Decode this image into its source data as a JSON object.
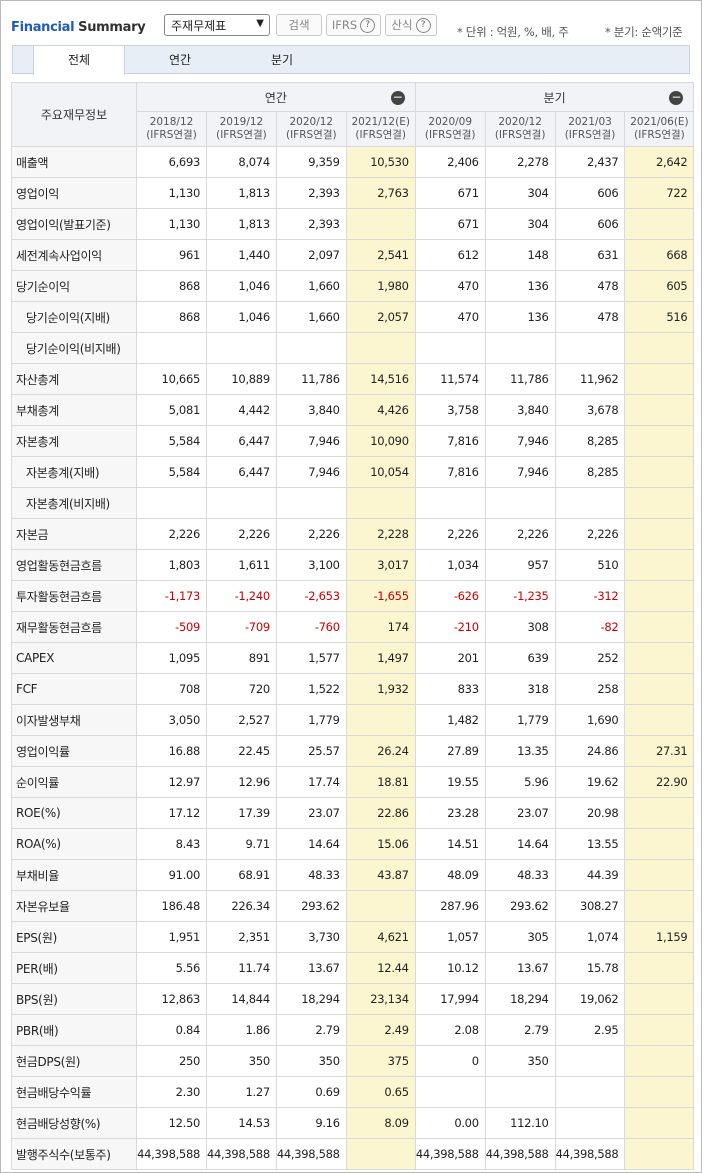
{
  "header": {
    "title_part1": "Financial",
    "title_part2": "Summary",
    "select_value": "주재무제표",
    "search_button": "검색",
    "ifrs_button": "IFRS",
    "formula_button": "산식",
    "help_symbol": "?",
    "unit_note": "* 단위 : 억원, %, 배, 주",
    "quarter_note": "* 분기: 순액기준"
  },
  "tabs": [
    "전체",
    "연간",
    "분기"
  ],
  "table": {
    "corner_label": "주요재무정보",
    "annual_label": "연간",
    "quarter_label": "분기",
    "collapse_symbol": "−",
    "periods": [
      {
        "date": "2018/12",
        "type": "(IFRS연결)"
      },
      {
        "date": "2019/12",
        "type": "(IFRS연결)"
      },
      {
        "date": "2020/12",
        "type": "(IFRS연결)"
      },
      {
        "date": "2021/12(E)",
        "type": "(IFRS연결)"
      },
      {
        "date": "2020/09",
        "type": "(IFRS연결)"
      },
      {
        "date": "2020/12",
        "type": "(IFRS연결)"
      },
      {
        "date": "2021/03",
        "type": "(IFRS연결)"
      },
      {
        "date": "2021/06(E)",
        "type": "(IFRS연결)"
      }
    ],
    "rows": [
      {
        "label": "매출액",
        "values": [
          "6,693",
          "8,074",
          "9,359",
          "10,530",
          "2,406",
          "2,278",
          "2,437",
          "2,642"
        ]
      },
      {
        "label": "영업이익",
        "values": [
          "1,130",
          "1,813",
          "2,393",
          "2,763",
          "671",
          "304",
          "606",
          "722"
        ]
      },
      {
        "label": "영업이익(발표기준)",
        "values": [
          "1,130",
          "1,813",
          "2,393",
          "",
          "671",
          "304",
          "606",
          ""
        ]
      },
      {
        "label": "세전계속사업이익",
        "values": [
          "961",
          "1,440",
          "2,097",
          "2,541",
          "612",
          "148",
          "631",
          "668"
        ]
      },
      {
        "label": "당기순이익",
        "values": [
          "868",
          "1,046",
          "1,660",
          "1,980",
          "470",
          "136",
          "478",
          "605"
        ]
      },
      {
        "label": "당기순이익(지배)",
        "values": [
          "868",
          "1,046",
          "1,660",
          "2,057",
          "470",
          "136",
          "478",
          "516"
        ]
      },
      {
        "label": "당기순이익(비지배)",
        "values": [
          "",
          "",
          "",
          "",
          "",
          "",
          "",
          ""
        ]
      },
      {
        "label": "자산총계",
        "values": [
          "10,665",
          "10,889",
          "11,786",
          "14,516",
          "11,574",
          "11,786",
          "11,962",
          ""
        ]
      },
      {
        "label": "부채총계",
        "values": [
          "5,081",
          "4,442",
          "3,840",
          "4,426",
          "3,758",
          "3,840",
          "3,678",
          ""
        ]
      },
      {
        "label": "자본총계",
        "values": [
          "5,584",
          "6,447",
          "7,946",
          "10,090",
          "7,816",
          "7,946",
          "8,285",
          ""
        ]
      },
      {
        "label": "자본총계(지배)",
        "values": [
          "5,584",
          "6,447",
          "7,946",
          "10,054",
          "7,816",
          "7,946",
          "8,285",
          ""
        ]
      },
      {
        "label": "자본총계(비지배)",
        "values": [
          "",
          "",
          "",
          "",
          "",
          "",
          "",
          ""
        ]
      },
      {
        "label": "자본금",
        "values": [
          "2,226",
          "2,226",
          "2,226",
          "2,228",
          "2,226",
          "2,226",
          "2,226",
          ""
        ]
      },
      {
        "label": "영업활동현금흐름",
        "values": [
          "1,803",
          "1,611",
          "3,100",
          "3,017",
          "1,034",
          "957",
          "510",
          ""
        ]
      },
      {
        "label": "투자활동현금흐름",
        "values": [
          "-1,173",
          "-1,240",
          "-2,653",
          "-1,655",
          "-626",
          "-1,235",
          "-312",
          ""
        ]
      },
      {
        "label": "재무활동현금흐름",
        "values": [
          "-509",
          "-709",
          "-760",
          "174",
          "-210",
          "308",
          "-82",
          ""
        ]
      },
      {
        "label": "CAPEX",
        "values": [
          "1,095",
          "891",
          "1,577",
          "1,497",
          "201",
          "639",
          "252",
          ""
        ]
      },
      {
        "label": "FCF",
        "values": [
          "708",
          "720",
          "1,522",
          "1,932",
          "833",
          "318",
          "258",
          ""
        ]
      },
      {
        "label": "이자발생부채",
        "values": [
          "3,050",
          "2,527",
          "1,779",
          "",
          "1,482",
          "1,779",
          "1,690",
          ""
        ]
      },
      {
        "label": "영업이익률",
        "values": [
          "16.88",
          "22.45",
          "25.57",
          "26.24",
          "27.89",
          "13.35",
          "24.86",
          "27.31"
        ]
      },
      {
        "label": "순이익률",
        "values": [
          "12.97",
          "12.96",
          "17.74",
          "18.81",
          "19.55",
          "5.96",
          "19.62",
          "22.90"
        ]
      },
      {
        "label": "ROE(%)",
        "values": [
          "17.12",
          "17.39",
          "23.07",
          "22.86",
          "23.28",
          "23.07",
          "20.98",
          ""
        ]
      },
      {
        "label": "ROA(%)",
        "values": [
          "8.43",
          "9.71",
          "14.64",
          "15.06",
          "14.51",
          "14.64",
          "13.55",
          ""
        ]
      },
      {
        "label": "부채비율",
        "values": [
          "91.00",
          "68.91",
          "48.33",
          "43.87",
          "48.09",
          "48.33",
          "44.39",
          ""
        ]
      },
      {
        "label": "자본유보율",
        "values": [
          "186.48",
          "226.34",
          "293.62",
          "",
          "287.96",
          "293.62",
          "308.27",
          ""
        ]
      },
      {
        "label": "EPS(원)",
        "values": [
          "1,951",
          "2,351",
          "3,730",
          "4,621",
          "1,057",
          "305",
          "1,074",
          "1,159"
        ]
      },
      {
        "label": "PER(배)",
        "values": [
          "5.56",
          "11.74",
          "13.67",
          "12.44",
          "10.12",
          "13.67",
          "15.78",
          ""
        ]
      },
      {
        "label": "BPS(원)",
        "values": [
          "12,863",
          "14,844",
          "18,294",
          "23,134",
          "17,994",
          "18,294",
          "19,062",
          ""
        ]
      },
      {
        "label": "PBR(배)",
        "values": [
          "0.84",
          "1.86",
          "2.79",
          "2.49",
          "2.08",
          "2.79",
          "2.95",
          ""
        ]
      },
      {
        "label": "현금DPS(원)",
        "values": [
          "250",
          "350",
          "350",
          "375",
          "0",
          "350",
          "",
          ""
        ]
      },
      {
        "label": "현금배당수익률",
        "values": [
          "2.30",
          "1.27",
          "0.69",
          "0.65",
          "",
          "",
          "",
          ""
        ]
      },
      {
        "label": "현금배당성향(%)",
        "values": [
          "12.50",
          "14.53",
          "9.16",
          "8.09",
          "0.00",
          "112.10",
          "",
          ""
        ]
      },
      {
        "label": "발행주식수(보통주)",
        "values": [
          "44,398,588",
          "44,398,588",
          "44,398,588",
          "",
          "44,398,588",
          "44,398,588",
          "44,398,588",
          ""
        ]
      }
    ]
  },
  "colors": {
    "estimate_bg": "#fbf6cf",
    "negative": "#cc0000",
    "header_bg": "#f1f3f6",
    "brand": "#1f5bb8"
  }
}
